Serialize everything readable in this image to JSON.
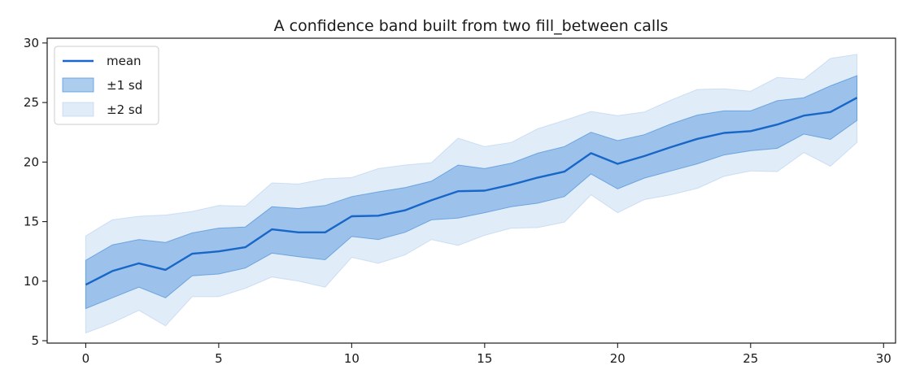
{
  "chart_data": {
    "type": "line",
    "title": "A confidence band built from two fill_between calls",
    "xlabel": "",
    "ylabel": "",
    "xlim": [
      -1.45,
      30.45
    ],
    "ylim": [
      4.8,
      30.4
    ],
    "xticks": [
      0,
      5,
      10,
      15,
      20,
      25,
      30
    ],
    "yticks": [
      5,
      10,
      15,
      20,
      25,
      30
    ],
    "grid": false,
    "legend_position": "upper-left",
    "colors": {
      "line": "#1766c8",
      "band1_fill": "#4a90d9",
      "band1_edge": "#4a90d9",
      "band2_fill": "#a9c8ee",
      "band2_edge": "#a9c8ee"
    },
    "x": [
      0,
      1,
      2,
      3,
      4,
      5,
      6,
      7,
      8,
      9,
      10,
      11,
      12,
      13,
      14,
      15,
      16,
      17,
      18,
      19,
      20,
      21,
      22,
      23,
      24,
      25,
      26,
      27,
      28,
      29
    ],
    "series": [
      {
        "name": "mean",
        "kind": "line",
        "values": [
          9.7,
          10.85,
          11.5,
          10.95,
          12.3,
          12.5,
          12.85,
          14.35,
          14.1,
          14.1,
          15.45,
          15.5,
          15.95,
          16.8,
          17.55,
          17.6,
          18.1,
          18.7,
          19.2,
          20.75,
          19.85,
          20.5,
          21.25,
          21.95,
          22.45,
          22.6,
          23.15,
          23.9,
          24.2,
          25.4
        ]
      },
      {
        "name": "±1 sd",
        "kind": "band",
        "lower": [
          7.7,
          8.6,
          9.5,
          8.6,
          10.45,
          10.6,
          11.1,
          12.35,
          12.05,
          11.8,
          13.75,
          13.5,
          14.1,
          15.15,
          15.3,
          15.75,
          16.25,
          16.55,
          17.1,
          19.0,
          17.75,
          18.65,
          19.25,
          19.85,
          20.6,
          20.95,
          21.15,
          22.35,
          21.9,
          23.5
        ],
        "upper": [
          11.75,
          13.05,
          13.5,
          13.25,
          14.05,
          14.45,
          14.55,
          16.25,
          16.1,
          16.35,
          17.1,
          17.5,
          17.85,
          18.4,
          19.75,
          19.45,
          19.9,
          20.75,
          21.3,
          22.5,
          21.8,
          22.3,
          23.2,
          23.95,
          24.3,
          24.3,
          25.15,
          25.4,
          26.4,
          27.25
        ]
      },
      {
        "name": "±2 sd",
        "kind": "band",
        "lower": [
          5.65,
          6.5,
          7.55,
          6.25,
          8.7,
          8.7,
          9.4,
          10.35,
          10.0,
          9.5,
          12.0,
          11.5,
          12.2,
          13.5,
          13.0,
          13.85,
          14.45,
          14.5,
          14.95,
          17.25,
          15.75,
          16.85,
          17.25,
          17.8,
          18.8,
          19.25,
          19.2,
          20.8,
          19.65,
          21.65
        ],
        "upper": [
          13.8,
          15.15,
          15.45,
          15.55,
          15.85,
          16.35,
          16.3,
          18.25,
          18.15,
          18.6,
          18.7,
          19.45,
          19.75,
          19.95,
          22.0,
          21.3,
          21.65,
          22.8,
          23.5,
          24.25,
          23.9,
          24.2,
          25.2,
          26.1,
          26.15,
          25.95,
          27.1,
          26.95,
          28.7,
          29.05
        ]
      }
    ]
  }
}
